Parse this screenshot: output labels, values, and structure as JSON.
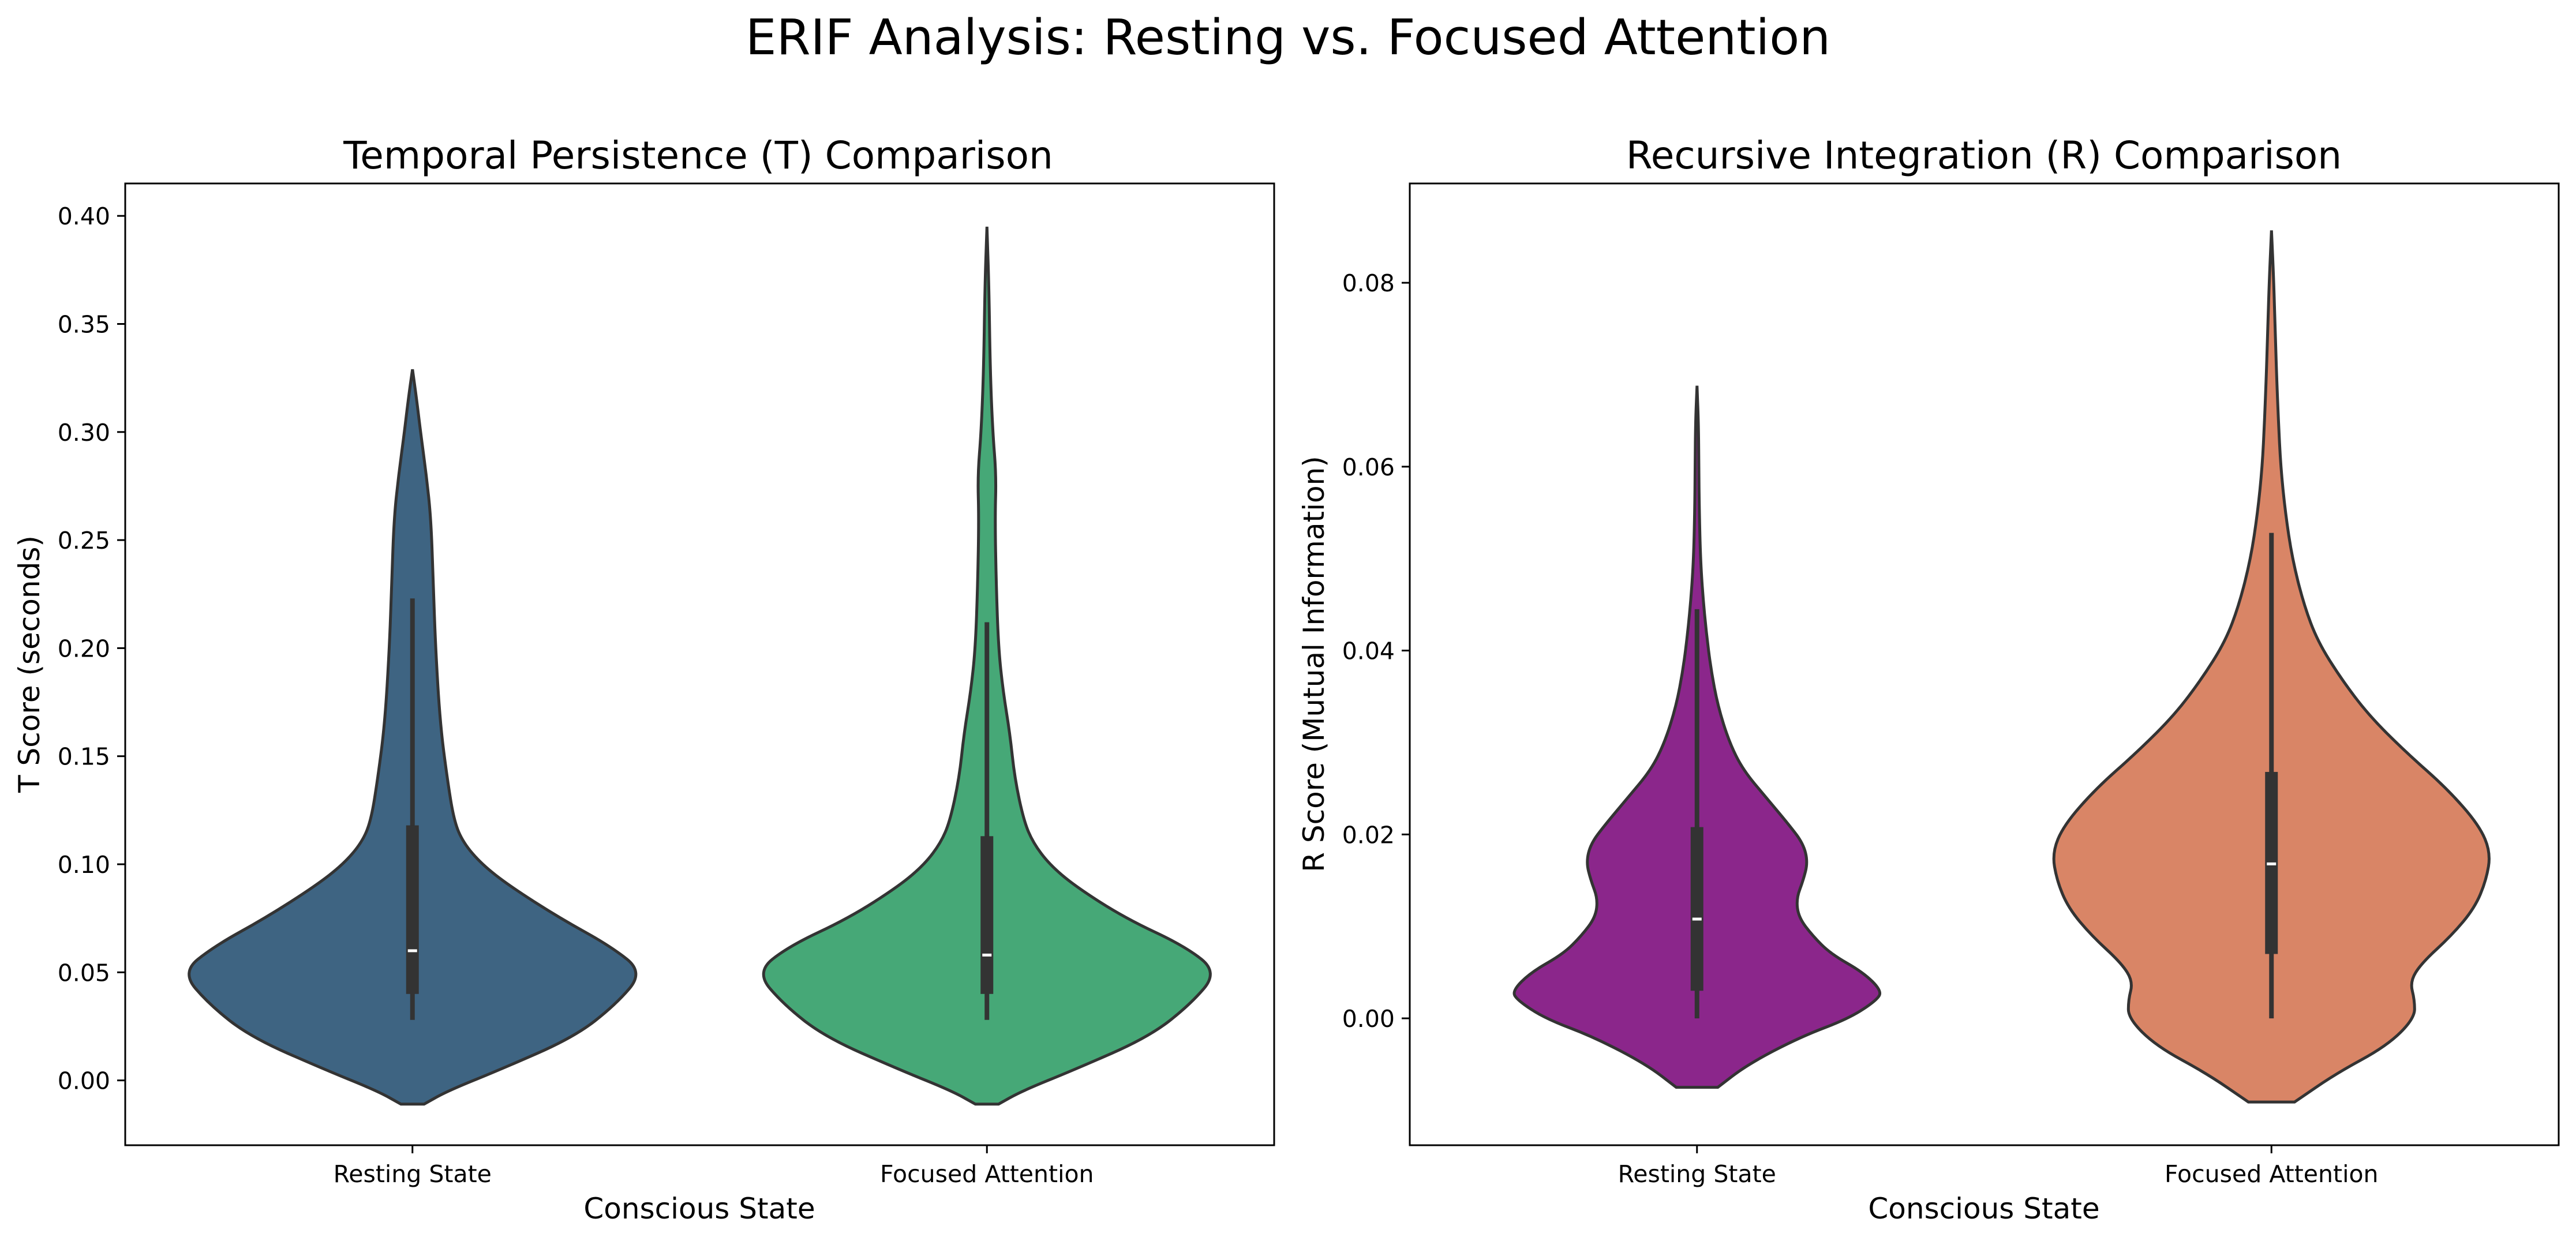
{
  "chart_data": {
    "title": "ERIF Analysis: Resting vs. Focused Attention",
    "panels": [
      {
        "type": "violin",
        "title": "Temporal Persistence (T) Comparison",
        "xlabel": "Conscious State",
        "ylabel": "T Score (seconds)",
        "categories": [
          "Resting State",
          "Focused Attention"
        ],
        "ylim": [
          -0.03,
          0.415
        ],
        "yticks": [
          0.0,
          0.05,
          0.1,
          0.15,
          0.2,
          0.25,
          0.3,
          0.35,
          0.4
        ],
        "ytick_labels": [
          "0.00",
          "0.05",
          "0.10",
          "0.15",
          "0.20",
          "0.25",
          "0.30",
          "0.35",
          "0.40"
        ],
        "grid": false,
        "violins": [
          {
            "category": "Resting State",
            "color": "#3e6482",
            "range": [
              -0.011,
              0.329
            ],
            "median": 0.06,
            "q1": 0.04,
            "q3": 0.118,
            "whisker_low": 0.028,
            "whisker_high": 0.223,
            "density_profile": [
              [
                -0.011,
                0.05
              ],
              [
                -0.005,
                0.15
              ],
              [
                0.005,
                0.38
              ],
              [
                0.02,
                0.7
              ],
              [
                0.035,
                0.88
              ],
              [
                0.05,
                1.0
              ],
              [
                0.062,
                0.86
              ],
              [
                0.075,
                0.64
              ],
              [
                0.09,
                0.42
              ],
              [
                0.1,
                0.3
              ],
              [
                0.11,
                0.22
              ],
              [
                0.12,
                0.18
              ],
              [
                0.14,
                0.15
              ],
              [
                0.165,
                0.12
              ],
              [
                0.2,
                0.1
              ],
              [
                0.23,
                0.09
              ],
              [
                0.26,
                0.08
              ],
              [
                0.28,
                0.06
              ],
              [
                0.3,
                0.035
              ],
              [
                0.315,
                0.018
              ],
              [
                0.329,
                0.0
              ]
            ]
          },
          {
            "category": "Focused Attention",
            "color": "#46a877",
            "range": [
              -0.011,
              0.395
            ],
            "median": 0.058,
            "q1": 0.04,
            "q3": 0.113,
            "whisker_low": 0.028,
            "whisker_high": 0.212,
            "density_profile": [
              [
                -0.011,
                0.05
              ],
              [
                -0.005,
                0.15
              ],
              [
                0.005,
                0.38
              ],
              [
                0.02,
                0.7
              ],
              [
                0.035,
                0.88
              ],
              [
                0.05,
                1.0
              ],
              [
                0.062,
                0.86
              ],
              [
                0.075,
                0.6
              ],
              [
                0.09,
                0.38
              ],
              [
                0.1,
                0.27
              ],
              [
                0.11,
                0.2
              ],
              [
                0.12,
                0.16
              ],
              [
                0.14,
                0.12
              ],
              [
                0.16,
                0.1
              ],
              [
                0.18,
                0.07
              ],
              [
                0.2,
                0.05
              ],
              [
                0.23,
                0.04
              ],
              [
                0.26,
                0.035
              ],
              [
                0.28,
                0.04
              ],
              [
                0.3,
                0.025
              ],
              [
                0.33,
                0.014
              ],
              [
                0.37,
                0.008
              ],
              [
                0.395,
                0.0
              ]
            ]
          }
        ]
      },
      {
        "type": "violin",
        "title": "Recursive Integration (R) Comparison",
        "xlabel": "Conscious State",
        "ylabel": "R Score (Mutual Information)",
        "categories": [
          "Resting State",
          "Focused Attention"
        ],
        "ylim": [
          -0.0138,
          0.0908
        ],
        "yticks": [
          0.0,
          0.02,
          0.04,
          0.06,
          0.08
        ],
        "ytick_labels": [
          "0.00",
          "0.02",
          "0.04",
          "0.06",
          "0.08"
        ],
        "grid": false,
        "violins": [
          {
            "category": "Resting State",
            "color": "#8b268b",
            "range": [
              -0.0075,
              0.0688
            ],
            "median": 0.0108,
            "q1": 0.003,
            "q3": 0.0208,
            "whisker_low": 0.0,
            "whisker_high": 0.0445,
            "density_profile": [
              [
                -0.0075,
                0.09
              ],
              [
                -0.005,
                0.22
              ],
              [
                -0.002,
                0.45
              ],
              [
                0.0,
                0.66
              ],
              [
                0.002,
                0.78
              ],
              [
                0.003,
                0.8
              ],
              [
                0.005,
                0.72
              ],
              [
                0.007,
                0.58
              ],
              [
                0.009,
                0.5
              ],
              [
                0.011,
                0.44
              ],
              [
                0.013,
                0.43
              ],
              [
                0.015,
                0.46
              ],
              [
                0.017,
                0.48
              ],
              [
                0.019,
                0.46
              ],
              [
                0.021,
                0.4
              ],
              [
                0.024,
                0.3
              ],
              [
                0.027,
                0.2
              ],
              [
                0.03,
                0.14
              ],
              [
                0.034,
                0.09
              ],
              [
                0.038,
                0.06
              ],
              [
                0.042,
                0.04
              ],
              [
                0.046,
                0.025
              ],
              [
                0.05,
                0.015
              ],
              [
                0.055,
                0.01
              ],
              [
                0.06,
                0.008
              ],
              [
                0.065,
                0.006
              ],
              [
                0.0688,
                0.0
              ]
            ]
          },
          {
            "category": "Focused Attention",
            "color": "#d98566",
            "range": [
              -0.0091,
              0.0857
            ],
            "median": 0.0168,
            "q1": 0.007,
            "q3": 0.0268,
            "whisker_low": 0.0,
            "whisker_high": 0.0528,
            "density_profile": [
              [
                -0.0091,
                0.1
              ],
              [
                -0.006,
                0.28
              ],
              [
                -0.003,
                0.5
              ],
              [
                0.0,
                0.62
              ],
              [
                0.002,
                0.62
              ],
              [
                0.004,
                0.6
              ],
              [
                0.006,
                0.65
              ],
              [
                0.009,
                0.78
              ],
              [
                0.012,
                0.88
              ],
              [
                0.015,
                0.93
              ],
              [
                0.018,
                0.95
              ],
              [
                0.021,
                0.9
              ],
              [
                0.025,
                0.76
              ],
              [
                0.029,
                0.58
              ],
              [
                0.033,
                0.42
              ],
              [
                0.037,
                0.3
              ],
              [
                0.041,
                0.2
              ],
              [
                0.045,
                0.14
              ],
              [
                0.05,
                0.09
              ],
              [
                0.055,
                0.06
              ],
              [
                0.06,
                0.04
              ],
              [
                0.065,
                0.03
              ],
              [
                0.07,
                0.022
              ],
              [
                0.075,
                0.016
              ],
              [
                0.08,
                0.01
              ],
              [
                0.0857,
                0.0
              ]
            ]
          }
        ]
      }
    ]
  }
}
